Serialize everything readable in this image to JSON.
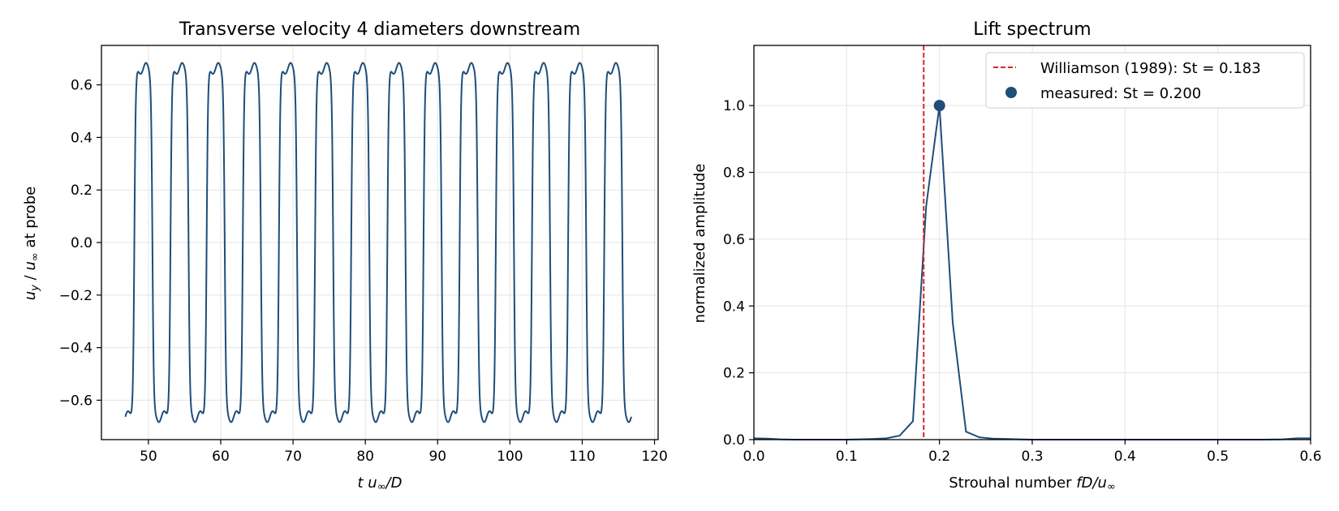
{
  "colors": {
    "series": "#1f4e79",
    "reference": "#d62728",
    "grid": "#e5e5e5"
  },
  "chart_data": [
    {
      "type": "line",
      "title": "Transverse velocity 4 diameters downstream",
      "xlabel": "t u∞/D",
      "ylabel": "uy / u∞ at probe",
      "xlim": [
        43.5,
        120.5
      ],
      "ylim": [
        -0.75,
        0.75
      ],
      "xticks": [
        50,
        60,
        70,
        80,
        90,
        100,
        110,
        120
      ],
      "yticks": [
        -0.6,
        -0.4,
        -0.2,
        0.0,
        0.2,
        0.4,
        0.6
      ],
      "ytick_labels": [
        "−0.6",
        "−0.4",
        "−0.2",
        "0.0",
        "0.2",
        "0.4",
        "0.6"
      ],
      "grid": true,
      "series": [
        {
          "signal": {
            "t_start": 46.8,
            "t_end": 116.8,
            "period": 5.0,
            "amplitude": 0.68,
            "description_values": "square-like oscillation between about -0.68 and 0.68, with small twin ripples near each plateau (peaks about 0.66 and 0.68, troughs about -0.63 and -0.68)"
          }
        }
      ]
    },
    {
      "type": "line",
      "title": "Lift spectrum",
      "xlabel": "Strouhal number  fD/u∞",
      "ylabel": "normalized amplitude",
      "xlim": [
        0.0,
        0.6
      ],
      "ylim": [
        0.0,
        1.18
      ],
      "xticks": [
        0.0,
        0.1,
        0.2,
        0.3,
        0.4,
        0.5,
        0.6
      ],
      "xtick_labels": [
        "0.0",
        "0.1",
        "0.2",
        "0.3",
        "0.4",
        "0.5",
        "0.6"
      ],
      "yticks": [
        0.0,
        0.2,
        0.4,
        0.6,
        0.8,
        1.0
      ],
      "ytick_labels": [
        "0.0",
        "0.2",
        "0.4",
        "0.6",
        "0.8",
        "1.0"
      ],
      "grid": true,
      "legend_position": "top-right",
      "series": [
        {
          "x": [
            0.0,
            0.0143,
            0.0286,
            0.0429,
            0.0571,
            0.0714,
            0.0857,
            0.1,
            0.1143,
            0.1286,
            0.1429,
            0.1571,
            0.1714,
            0.1857,
            0.2,
            0.2143,
            0.2286,
            0.2429,
            0.2571,
            0.2714,
            0.2857,
            0.3,
            0.35,
            0.4,
            0.45,
            0.5,
            0.55,
            0.57,
            0.585,
            0.6
          ],
          "y": [
            0.004,
            0.003,
            0.001,
            0.0,
            0.0,
            0.0,
            0.0,
            0.0,
            0.001,
            0.002,
            0.004,
            0.012,
            0.055,
            0.7,
            1.0,
            0.35,
            0.024,
            0.007,
            0.003,
            0.002,
            0.001,
            0.0,
            0.0,
            0.0,
            0.0,
            0.0,
            0.0,
            0.001,
            0.004,
            0.004
          ]
        }
      ],
      "reference_line": {
        "label": "Williamson (1989): St = 0.183",
        "x": 0.183
      },
      "marker": {
        "label": "measured: St = 0.200",
        "x": 0.2,
        "y": 1.0
      }
    }
  ]
}
